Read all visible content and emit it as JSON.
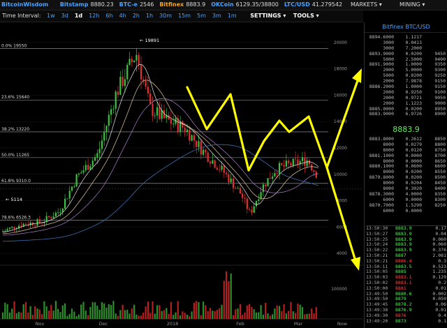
{
  "topbar": {
    "brand": "BitcoinWisdom",
    "markets": [
      {
        "name": "Bitstamp",
        "price": "8880.23",
        "color": "#4aa3ff"
      },
      {
        "name": "BTC-e",
        "price": "2546",
        "color": "#4aa3ff"
      },
      {
        "name": "Bitfinex",
        "price": "8883.9",
        "color": "#f5a623"
      },
      {
        "name": "OKCoin",
        "price": "6129.35/38800",
        "color": "#4aa3ff"
      },
      {
        "name": "LTC/USD",
        "price": "41.279542",
        "color": "#4aa3ff"
      }
    ],
    "markets_menu": "MARKETS ▾",
    "mining_menu": "MINING ▾"
  },
  "toolbar": {
    "time_interval_label": "Time Interval:",
    "intervals": [
      "1w",
      "3d",
      "1d",
      "12h",
      "6h",
      "4h",
      "2h",
      "1h",
      "30m",
      "15m",
      "5m",
      "3m",
      "1m"
    ],
    "selected_interval": "1d",
    "settings_label": "SETTINGS ▾",
    "tools_label": "TOOLS ▾"
  },
  "chart_data": {
    "type": "candlestick",
    "y_ticks": [
      "20000",
      "18000",
      "16000",
      "14000",
      "12000",
      "10000",
      "8000",
      "6000",
      "4000"
    ],
    "volume_ticks": [
      "100000"
    ],
    "x_ticks": [
      "Nov",
      "Dec",
      "2018",
      "Feb",
      "Mar",
      "Now"
    ],
    "fib_levels": [
      {
        "label": "0.0% 19550",
        "value": 19550
      },
      {
        "label": "23.6% 15640",
        "value": 15640
      },
      {
        "label": "38.2% 13220",
        "value": 13220
      },
      {
        "label": "50.0% 11265",
        "value": 11265
      },
      {
        "label": "61.8% 9310.0",
        "value": 9310
      },
      {
        "label": "78.6% 6526.3",
        "value": 6526.3
      }
    ],
    "annotations": [
      "← 19891",
      "← 5114"
    ],
    "ylim": [
      3000,
      21000
    ],
    "up_color": "#3fbf3f",
    "down_color": "#e03030",
    "arrow_color": "#ffff00"
  },
  "sidepanel": {
    "title": "Bitfinex BTC/USD",
    "last_price": "8883.9",
    "asks": [
      [
        "8894.6000",
        "1.1217",
        ""
      ],
      [
        "3000",
        "0.0413",
        ""
      ],
      [
        "3000",
        "7.2000",
        ""
      ],
      [
        "8893.9000",
        "0.0200",
        "9450"
      ],
      [
        "5000",
        "2.5000",
        "9400"
      ],
      [
        "8891.9000",
        "1.0000",
        "9350"
      ],
      [
        "2000",
        "5.0000",
        "9300"
      ],
      [
        "5000",
        "0.0200",
        "9250"
      ],
      [
        "2000",
        "7.9878",
        "9150"
      ],
      [
        "8886.2000",
        "1.0000",
        "9150"
      ],
      [
        "2000",
        "0.9250",
        "9100"
      ],
      [
        "2000",
        "0.9721",
        "9050"
      ],
      [
        "2000",
        "1.1223",
        "9000"
      ],
      [
        "8885.0000",
        "0.0200",
        "8950"
      ],
      [
        "8883.9000",
        "6.9726",
        "8900"
      ]
    ],
    "bids": [
      [
        "8883.8000",
        "0.2612",
        "8850"
      ],
      [
        "8000",
        "0.0279",
        "8800"
      ],
      [
        "8000",
        "0.0120",
        "8750"
      ],
      [
        "8881.1000",
        "0.0000",
        "8700"
      ],
      [
        "8000",
        "0.0000",
        "8650"
      ],
      [
        "8880.1000",
        "0.0600",
        "8600"
      ],
      [
        "8000",
        "0.0200",
        "8550"
      ],
      [
        "8879.8000",
        "0.0200",
        "8500"
      ],
      [
        "8000",
        "0.0204",
        "8450"
      ],
      [
        "8000",
        "0.3020",
        "8400"
      ],
      [
        "8878.3000",
        "4.0000",
        "8350"
      ],
      [
        "6000",
        "0.0000",
        "8300"
      ],
      [
        "8870.7000",
        "1.5290",
        "8250"
      ],
      [
        "6000",
        "0.0000",
        ""
      ]
    ],
    "trades": [
      [
        "13:50:30",
        "8883.9",
        "0.17",
        "g"
      ],
      [
        "13:50:27",
        "8883.9",
        "0.04",
        "g"
      ],
      [
        "13:50:25",
        "8883.9",
        "0.060",
        "g"
      ],
      [
        "13:50:24",
        "8883.9",
        "0.060",
        "g"
      ],
      [
        "13:50:22",
        "8883.9",
        "0.376",
        "g"
      ],
      [
        "13:50:21",
        "8887",
        "2.081",
        "g"
      ],
      [
        "13:50:21",
        "8886.4",
        "0.3",
        "r"
      ],
      [
        "13:50:11",
        "8883.5",
        "0.523",
        "g"
      ],
      [
        "13:50:05",
        "8885",
        "1.235",
        "g"
      ],
      [
        "13:50:03",
        "8883.1",
        "0.129",
        "r"
      ],
      [
        "13:50:02",
        "8883.1",
        "0.2",
        "r"
      ],
      [
        "13:50:00",
        "8881",
        "0.01",
        "r"
      ],
      [
        "13:49:50",
        "8880.6",
        "0.002",
        "g"
      ],
      [
        "13:49:50",
        "8879",
        "0.050",
        "g"
      ],
      [
        "13:49:45",
        "8878.2",
        "0.06",
        "g"
      ],
      [
        "13:49:38",
        "8876.9",
        "0.01",
        "g"
      ],
      [
        "13:49:30",
        "8876",
        "0.4",
        "r"
      ],
      [
        "13:49:20",
        "8873",
        "0.1",
        "g"
      ]
    ]
  }
}
